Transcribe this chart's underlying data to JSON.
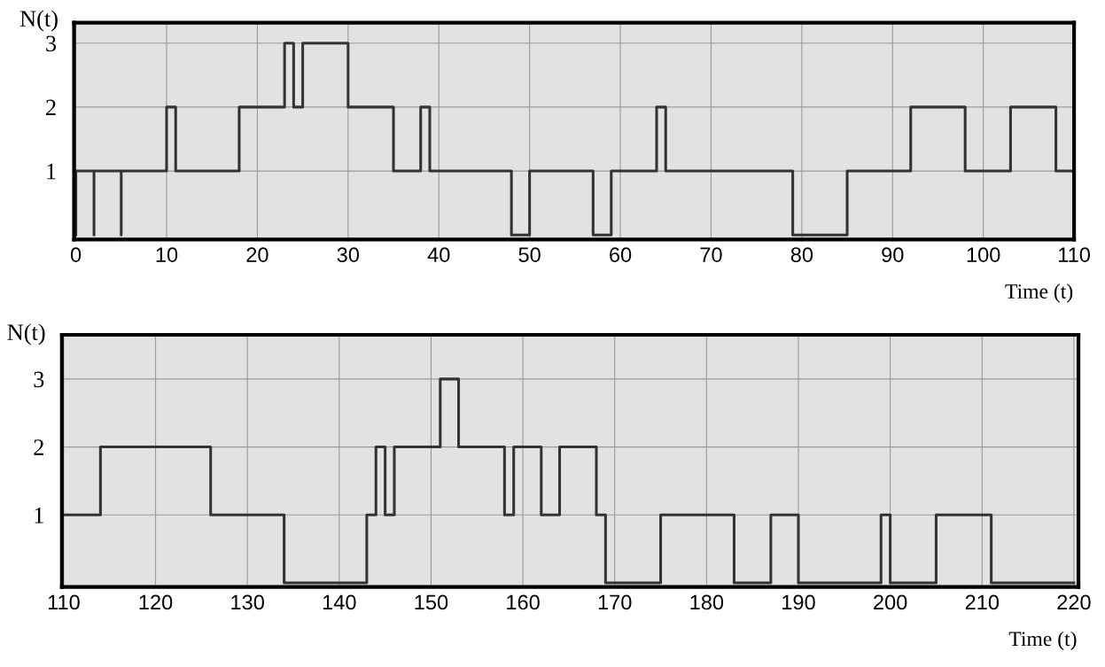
{
  "chart_data": [
    {
      "type": "step",
      "ylabel": "N(t)",
      "xlabel": "Time (t)",
      "xlim": [
        -0.2,
        110
      ],
      "xticks": [
        0,
        10,
        20,
        30,
        40,
        50,
        60,
        70,
        80,
        90,
        100,
        110
      ],
      "ylim": [
        -0.07,
        3.32
      ],
      "yticks": [
        1,
        2,
        3
      ],
      "grid": true,
      "series": [
        {
          "color": "#333333",
          "x": [
            0,
            0,
            2,
            2,
            5,
            5,
            10,
            11,
            18,
            23,
            24,
            25,
            30,
            35,
            38,
            39,
            48,
            50,
            57,
            59,
            64,
            65,
            79,
            85,
            92,
            98,
            103,
            108,
            110
          ],
          "values": [
            0,
            1,
            0,
            1,
            0,
            1,
            2,
            1,
            2,
            3,
            2,
            3,
            2,
            1,
            2,
            1,
            0,
            1,
            0,
            1,
            2,
            1,
            0,
            1,
            2,
            1,
            2,
            1,
            1
          ]
        }
      ]
    },
    {
      "type": "step",
      "ylabel": "N(t)",
      "xlabel": "Time (t)",
      "xlim": [
        109.8,
        220.5
      ],
      "xticks": [
        110,
        120,
        130,
        140,
        150,
        160,
        170,
        180,
        190,
        200,
        210,
        220
      ],
      "ylim": [
        -0.06,
        3.65
      ],
      "yticks": [
        1,
        2,
        3
      ],
      "grid": true,
      "series": [
        {
          "color": "#333333",
          "x": [
            110,
            114,
            126,
            134,
            143,
            144,
            145,
            146,
            151,
            153,
            158,
            159,
            162,
            164,
            168,
            169,
            175,
            183,
            187,
            190,
            199,
            200,
            205,
            211,
            220
          ],
          "values": [
            1,
            2,
            1,
            0,
            1,
            2,
            1,
            2,
            3,
            2,
            1,
            2,
            1,
            2,
            1,
            0,
            1,
            0,
            1,
            0,
            1,
            0,
            1,
            0,
            0
          ]
        }
      ]
    }
  ]
}
